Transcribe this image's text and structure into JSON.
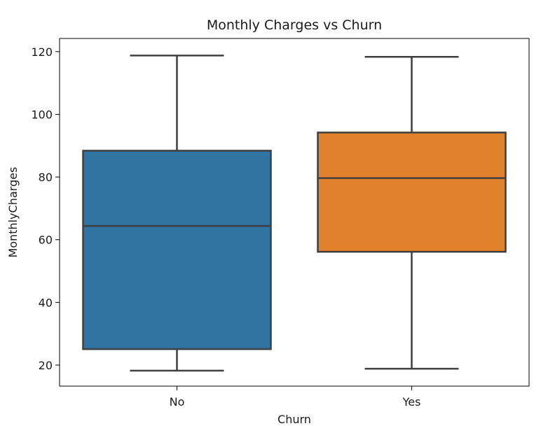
{
  "chart_data": {
    "type": "box",
    "title": "Monthly Charges vs Churn",
    "xlabel": "Churn",
    "ylabel": "MonthlyCharges",
    "ylim": [
      13.3,
      124.2
    ],
    "yticks": [
      20,
      40,
      60,
      80,
      100,
      120
    ],
    "grid": false,
    "categories": [
      "No",
      "Yes"
    ],
    "boxes": [
      {
        "category": "No",
        "whisker_low": 18.25,
        "q1": 25.1,
        "median": 64.4,
        "q3": 88.4,
        "whisker_high": 118.75,
        "color": "#3274a1"
      },
      {
        "category": "Yes",
        "whisker_low": 18.85,
        "q1": 56.15,
        "median": 79.65,
        "q3": 94.2,
        "whisker_high": 118.35,
        "color": "#e1812c"
      }
    ]
  }
}
